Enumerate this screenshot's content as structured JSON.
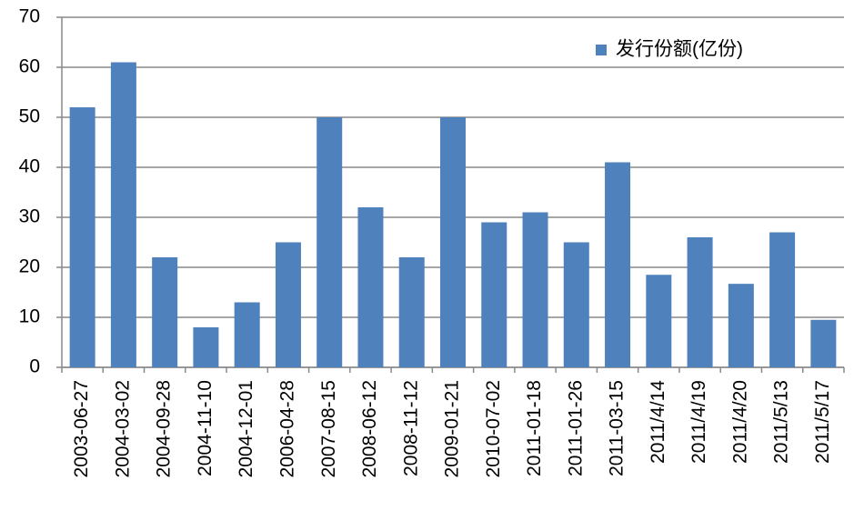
{
  "chart_data": {
    "type": "bar",
    "categories": [
      "2003-06-27",
      "2004-03-02",
      "2004-09-28",
      "2004-11-10",
      "2004-12-01",
      "2006-04-28",
      "2007-08-15",
      "2008-06-12",
      "2008-11-12",
      "2009-01-21",
      "2010-07-02",
      "2011-01-18",
      "2011-01-26",
      "2011-03-15",
      "2011/4/14",
      "2011/4/19",
      "2011/4/20",
      "2011/5/13",
      "2011/5/17"
    ],
    "series": [
      {
        "name": "发行份额(亿份)",
        "color": "#4f81bd",
        "values": [
          52,
          61,
          22,
          8,
          13,
          25,
          50,
          32,
          22,
          50,
          29,
          31,
          25,
          41,
          18.5,
          26,
          16.7,
          27,
          9.5
        ]
      }
    ],
    "ylim": [
      0,
      70
    ],
    "yticks": [
      0,
      10,
      20,
      30,
      40,
      50,
      60,
      70
    ],
    "grid": true,
    "legend": "top-right"
  }
}
